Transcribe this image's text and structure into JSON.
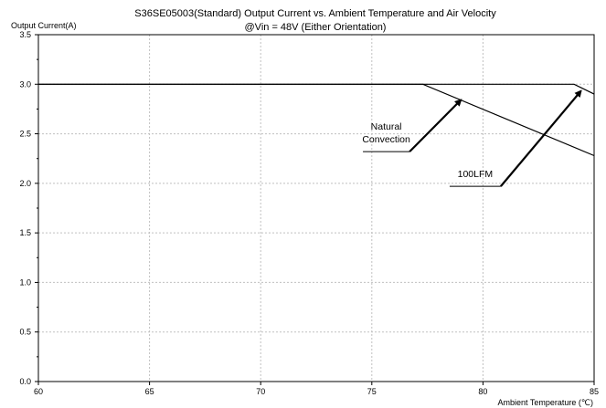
{
  "chart_data": {
    "type": "line",
    "title_line1": "S36SE05003(Standard)  Output Current vs. Ambient Temperature and Air Velocity",
    "title_line2": "@Vin = 48V (Either Orientation)",
    "ylabel": "Output Current(A)",
    "xlabel": "Ambient Temperature (℃)",
    "xlim": [
      60,
      85
    ],
    "ylim": [
      0,
      3.5
    ],
    "xticks": [
      60,
      65,
      70,
      75,
      80,
      85
    ],
    "yticks": [
      0,
      0.5,
      1,
      1.5,
      2,
      2.5,
      3,
      3.5
    ],
    "ytick_labels": [
      "0.0",
      "0.5",
      "1.0",
      "1.5",
      "2.0",
      "2.5",
      "3.0",
      "3.5"
    ],
    "xtick_labels": [
      "60",
      "65",
      "70",
      "75",
      "80",
      "85"
    ],
    "grid": true,
    "series": [
      {
        "name": "Natural Convection",
        "x": [
          60,
          77.3,
          85
        ],
        "y": [
          3.0,
          3.0,
          2.28
        ]
      },
      {
        "name": "100LFM",
        "x": [
          60,
          84.1,
          85
        ],
        "y": [
          3.0,
          3.0,
          2.9
        ]
      }
    ],
    "annotations": [
      {
        "lines": [
          "Natural",
          "Convection"
        ],
        "series": "Natural Convection",
        "label_at": [
          76.7,
          2.32
        ],
        "leader_start": [
          74.6,
          2.32
        ],
        "arrow_to": [
          79.0,
          2.84
        ]
      },
      {
        "lines": [
          "100LFM"
        ],
        "series": "100LFM",
        "label_at": [
          80.8,
          1.97
        ],
        "leader_start": [
          78.5,
          1.97
        ],
        "arrow_to": [
          84.4,
          2.93
        ]
      }
    ]
  }
}
